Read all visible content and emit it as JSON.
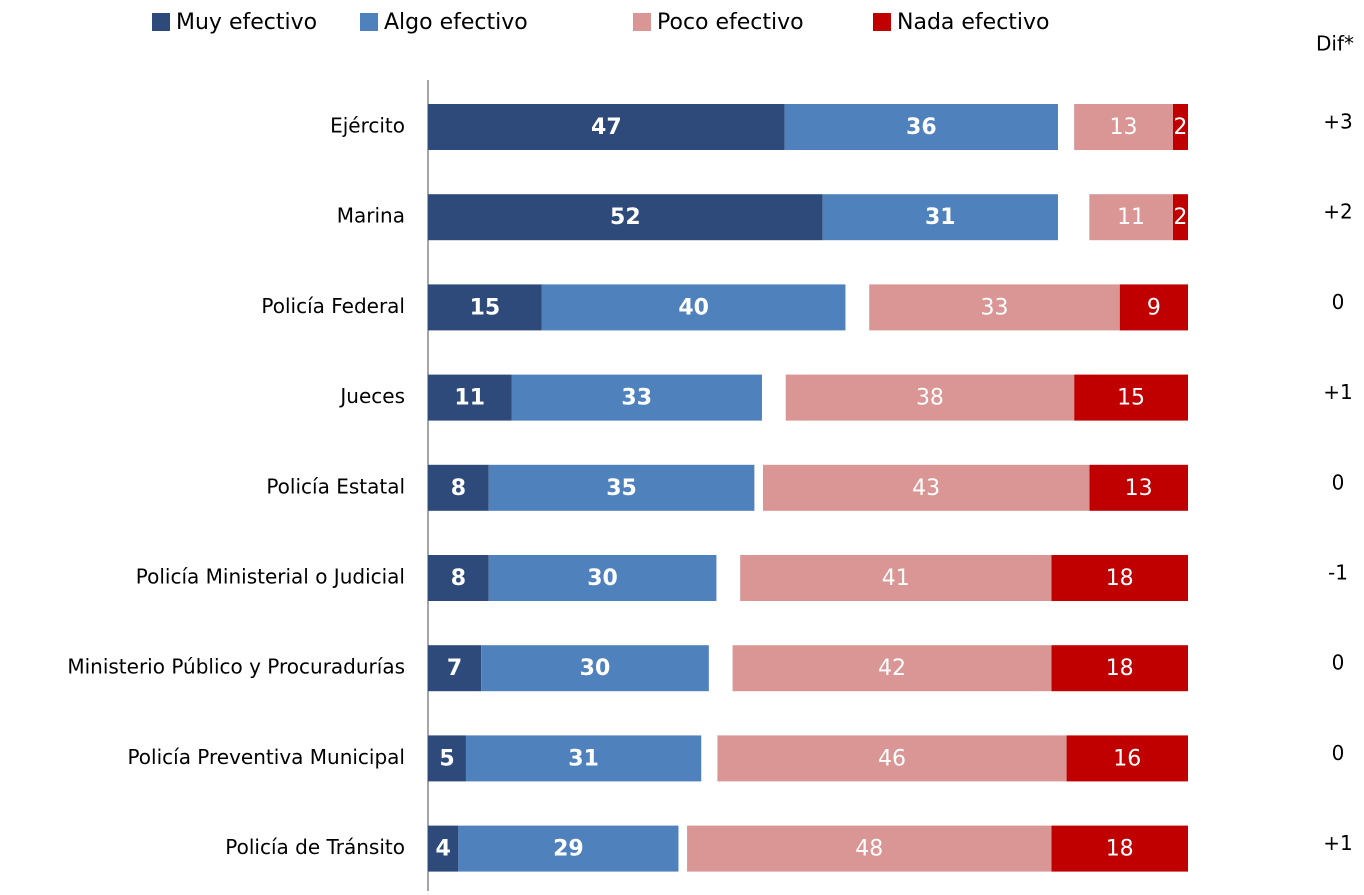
{
  "chart_data": {
    "type": "bar",
    "orientation": "horizontal",
    "stacked": true,
    "diverging": true,
    "categories": [
      "Ejército",
      "Marina",
      "Policía Federal",
      "Jueces",
      "Policía Estatal",
      "Policía Ministerial o Judicial",
      "Ministerio Público y Procuradurías",
      "Policía Preventiva Municipal",
      "Policía de Tránsito"
    ],
    "series": [
      {
        "name": "Muy efectivo",
        "color": "#2E4A7A",
        "side": "positive",
        "values": [
          47,
          52,
          15,
          11,
          8,
          8,
          7,
          5,
          4
        ]
      },
      {
        "name": "Algo efectivo",
        "color": "#4F81BD",
        "side": "positive",
        "values": [
          36,
          31,
          40,
          33,
          35,
          30,
          30,
          31,
          29
        ]
      },
      {
        "name": "Poco efectivo",
        "color": "#D99694",
        "side": "negative",
        "values": [
          13,
          11,
          33,
          38,
          43,
          41,
          42,
          46,
          48
        ]
      },
      {
        "name": "Nada efectivo",
        "color": "#C00000",
        "side": "negative",
        "values": [
          2,
          2,
          9,
          15,
          13,
          18,
          18,
          16,
          18
        ]
      }
    ],
    "dif": {
      "title": "Dif*",
      "values": [
        3,
        2,
        0,
        1,
        0,
        -1,
        0,
        0,
        1
      ],
      "value_labels": [
        "+3",
        "+2",
        "0",
        "+1",
        "0",
        "-1",
        "0",
        "0",
        "+1"
      ]
    },
    "legend": "top"
  }
}
